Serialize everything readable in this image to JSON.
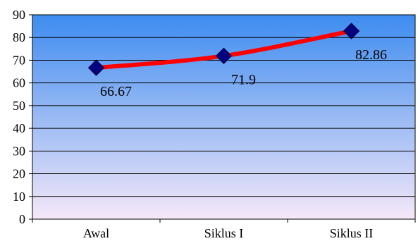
{
  "chart_data": {
    "type": "line",
    "title": "",
    "xlabel": "",
    "ylabel": "",
    "categories": [
      "Awal",
      "Siklus I",
      "Siklus II"
    ],
    "series": [
      {
        "values": [
          66.67,
          71.9,
          82.86
        ],
        "data_labels": [
          "66.67",
          "71.9",
          "82.86"
        ],
        "line_color": "#ff0000",
        "marker_color": "#000080",
        "marker": "diamond"
      }
    ],
    "ylim": [
      0,
      90
    ],
    "y_ticks": [
      "0",
      "10",
      "20",
      "30",
      "40",
      "50",
      "60",
      "70",
      "80",
      "90"
    ],
    "grid": true,
    "legend": "none",
    "plot_background_gradient": [
      "#3d8cf0",
      "#f5e8f8"
    ]
  }
}
